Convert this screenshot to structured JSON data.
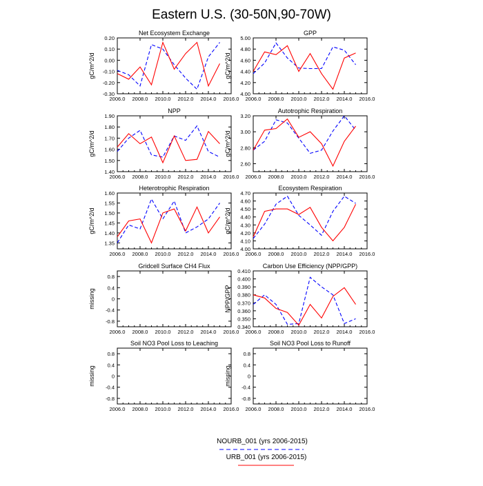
{
  "title": "Eastern U.S. (30-50N,90-70W)",
  "colors": {
    "nourb": "#0000ff",
    "urb": "#ff0000"
  },
  "legend": {
    "nourb_label": "NOURB_001 (yrs 2006-2015)",
    "urb_label": "URB_001 (yrs 2006-2015)"
  },
  "chart_data": [
    {
      "type": "line",
      "title": "Net Ecosystem Exchange",
      "ylabel": "gC/m^2/d",
      "xlim": [
        2006,
        2016
      ],
      "ylim": [
        -0.3,
        0.2
      ],
      "xticks": [
        "2006.0",
        "2008.0",
        "2010.0",
        "2012.0",
        "2014.0",
        "2016.0"
      ],
      "yticks": [
        "-0.30",
        "-0.20",
        "-0.10",
        "0.00",
        "0.10",
        "0.20"
      ],
      "x": [
        2006,
        2007,
        2008,
        2009,
        2010,
        2011,
        2012,
        2013,
        2014,
        2015
      ],
      "series": [
        {
          "name": "NOURB_001 (yrs 2006-2015)",
          "style": "dashed",
          "values": [
            -0.09,
            -0.13,
            -0.23,
            0.14,
            0.1,
            -0.04,
            -0.16,
            -0.26,
            0.03,
            0.16
          ]
        },
        {
          "name": "URB_001 (yrs 2006-2015)",
          "style": "solid",
          "values": [
            -0.12,
            -0.17,
            -0.06,
            -0.22,
            0.16,
            -0.08,
            0.06,
            0.16,
            -0.23,
            -0.03
          ]
        }
      ]
    },
    {
      "type": "line",
      "title": "GPP",
      "ylabel": "gC/m^2/d",
      "xlim": [
        2006,
        2016
      ],
      "ylim": [
        4.0,
        5.0
      ],
      "xticks": [
        "2006.0",
        "2008.0",
        "2010.0",
        "2012.0",
        "2014.0",
        "2016.0"
      ],
      "yticks": [
        "4.00",
        "4.20",
        "4.40",
        "4.60",
        "4.80",
        "5.00"
      ],
      "x": [
        2006,
        2007,
        2008,
        2009,
        2010,
        2011,
        2012,
        2013,
        2014,
        2015
      ],
      "series": [
        {
          "name": "NOURB_001 (yrs 2006-2015)",
          "style": "dashed",
          "values": [
            4.36,
            4.55,
            4.91,
            4.64,
            4.46,
            4.45,
            4.45,
            4.84,
            4.78,
            4.52
          ]
        },
        {
          "name": "URB_001 (yrs 2006-2015)",
          "style": "solid",
          "values": [
            4.4,
            4.75,
            4.7,
            4.86,
            4.4,
            4.72,
            4.36,
            4.08,
            4.64,
            4.73
          ]
        }
      ]
    },
    {
      "type": "line",
      "title": "NPP",
      "ylabel": "gC/m^2/d",
      "xlim": [
        2006,
        2016
      ],
      "ylim": [
        1.4,
        1.9
      ],
      "xticks": [
        "2006.0",
        "2008.0",
        "2010.0",
        "2012.0",
        "2014.0",
        "2016.0"
      ],
      "yticks": [
        "1.40",
        "1.50",
        "1.60",
        "1.70",
        "1.80",
        "1.90"
      ],
      "x": [
        2006,
        2007,
        2008,
        2009,
        2010,
        2011,
        2012,
        2013,
        2014,
        2015
      ],
      "series": [
        {
          "name": "NOURB_001 (yrs 2006-2015)",
          "style": "dashed",
          "values": [
            1.58,
            1.7,
            1.77,
            1.55,
            1.53,
            1.72,
            1.68,
            1.81,
            1.58,
            1.53
          ]
        },
        {
          "name": "URB_001 (yrs 2006-2015)",
          "style": "solid",
          "values": [
            1.62,
            1.74,
            1.65,
            1.71,
            1.48,
            1.72,
            1.5,
            1.51,
            1.76,
            1.65
          ]
        }
      ]
    },
    {
      "type": "line",
      "title": "Autotrophic Respiration",
      "ylabel": "gC/m^2/d",
      "xlim": [
        2006,
        2016
      ],
      "ylim": [
        2.5,
        3.2
      ],
      "xticks": [
        "2006.0",
        "2008.0",
        "2010.0",
        "2012.0",
        "2014.0",
        "2016.0"
      ],
      "yticks": [
        "2.60",
        "2.80",
        "3.00",
        "3.20"
      ],
      "ytick_values": [
        2.6,
        2.8,
        3.0,
        3.2
      ],
      "x": [
        2006,
        2007,
        2008,
        2009,
        2010,
        2011,
        2012,
        2013,
        2014,
        2015
      ],
      "series": [
        {
          "name": "NOURB_001 (yrs 2006-2015)",
          "style": "dashed",
          "values": [
            2.77,
            2.88,
            3.15,
            3.11,
            2.92,
            2.73,
            2.77,
            3.01,
            3.2,
            3.02
          ]
        },
        {
          "name": "URB_001 (yrs 2006-2015)",
          "style": "solid",
          "values": [
            2.77,
            3.02,
            3.04,
            3.16,
            2.93,
            3.0,
            2.85,
            2.57,
            2.88,
            3.07
          ]
        }
      ]
    },
    {
      "type": "line",
      "title": "Heterotrophic Respiration",
      "ylabel": "gC/m^2/d",
      "xlim": [
        2006,
        2016
      ],
      "ylim": [
        1.32,
        1.6
      ],
      "xticks": [
        "2006.0",
        "2008.0",
        "2010.0",
        "2012.0",
        "2014.0",
        "2016.0"
      ],
      "yticks": [
        "1.35",
        "1.40",
        "1.45",
        "1.50",
        "1.55",
        "1.60"
      ],
      "ytick_values": [
        1.35,
        1.4,
        1.45,
        1.5,
        1.55,
        1.6
      ],
      "x": [
        2006,
        2007,
        2008,
        2009,
        2010,
        2011,
        2012,
        2013,
        2014,
        2015
      ],
      "series": [
        {
          "name": "NOURB_001 (yrs 2006-2015)",
          "style": "dashed",
          "values": [
            1.35,
            1.44,
            1.42,
            1.57,
            1.47,
            1.56,
            1.4,
            1.43,
            1.47,
            1.55
          ]
        },
        {
          "name": "URB_001 (yrs 2006-2015)",
          "style": "solid",
          "values": [
            1.38,
            1.46,
            1.47,
            1.35,
            1.5,
            1.52,
            1.41,
            1.53,
            1.4,
            1.48
          ]
        }
      ]
    },
    {
      "type": "line",
      "title": "Ecosystem Respiration",
      "ylabel": "gC/m^2/d",
      "xlim": [
        2006,
        2016
      ],
      "ylim": [
        4.0,
        4.7
      ],
      "xticks": [
        "2006.0",
        "2008.0",
        "2010.0",
        "2012.0",
        "2014.0",
        "2016.0"
      ],
      "yticks": [
        "4.00",
        "4.10",
        "4.20",
        "4.30",
        "4.40",
        "4.50",
        "4.60",
        "4.70"
      ],
      "x": [
        2006,
        2007,
        2008,
        2009,
        2010,
        2011,
        2012,
        2013,
        2014,
        2015
      ],
      "series": [
        {
          "name": "NOURB_001 (yrs 2006-2015)",
          "style": "dashed",
          "values": [
            4.13,
            4.31,
            4.56,
            4.66,
            4.42,
            4.3,
            4.17,
            4.47,
            4.66,
            4.57
          ]
        },
        {
          "name": "URB_001 (yrs 2006-2015)",
          "style": "solid",
          "values": [
            4.15,
            4.47,
            4.5,
            4.5,
            4.43,
            4.52,
            4.27,
            4.1,
            4.27,
            4.56
          ]
        }
      ]
    },
    {
      "type": "line",
      "title": "Gridcell Surface CH4 Flux",
      "ylabel": "missing",
      "xlim": [
        2006,
        2016
      ],
      "ylim": [
        -1.0,
        1.0
      ],
      "xticks": [
        "2006.0",
        "2008.0",
        "2010.0",
        "2012.0",
        "2014.0",
        "2016.0"
      ],
      "yticks": [
        "-0.8",
        "-0.4",
        "0",
        "0.4",
        "0.8"
      ],
      "ytick_values": [
        -0.8,
        -0.4,
        0,
        0.4,
        0.8
      ],
      "x": [],
      "series": []
    },
    {
      "type": "line",
      "title": "Carbon Use Efficiency (NPP/GPP)",
      "ylabel": "NPP/GPP",
      "xlim": [
        2006,
        2016
      ],
      "ylim": [
        0.34,
        0.41
      ],
      "xticks": [
        "2006.0",
        "2008.0",
        "2010.0",
        "2012.0",
        "2014.0",
        "2016.0"
      ],
      "yticks": [
        "0.340",
        "0.350",
        "0.360",
        "0.370",
        "0.380",
        "0.390",
        "0.400",
        "0.410"
      ],
      "x": [
        2006,
        2007,
        2008,
        2009,
        2010,
        2011,
        2012,
        2013,
        2014,
        2015
      ],
      "series": [
        {
          "name": "NOURB_001 (yrs 2006-2015)",
          "style": "dashed",
          "values": [
            0.368,
            0.38,
            0.368,
            0.343,
            0.344,
            0.402,
            0.39,
            0.38,
            0.344,
            0.35
          ]
        },
        {
          "name": "URB_001 (yrs 2006-2015)",
          "style": "solid",
          "values": [
            0.38,
            0.376,
            0.363,
            0.358,
            0.342,
            0.368,
            0.351,
            0.378,
            0.389,
            0.368
          ]
        }
      ]
    },
    {
      "type": "line",
      "title": "Soil NO3 Pool Loss to Leaching",
      "ylabel": "missing",
      "xlim": [
        2006,
        2016
      ],
      "ylim": [
        -1.0,
        1.0
      ],
      "xticks": [
        "2006.0",
        "2008.0",
        "2010.0",
        "2012.0",
        "2014.0",
        "2016.0"
      ],
      "yticks": [
        "-0.8",
        "-0.4",
        "0",
        "0.4",
        "0.8"
      ],
      "ytick_values": [
        -0.8,
        -0.4,
        0,
        0.4,
        0.8
      ],
      "x": [],
      "series": []
    },
    {
      "type": "line",
      "title": "Soil NO3 Pool Loss to Runoff",
      "ylabel": "missing",
      "xlim": [
        2006,
        2016
      ],
      "ylim": [
        -1.0,
        1.0
      ],
      "xticks": [
        "2006.0",
        "2008.0",
        "2010.0",
        "2012.0",
        "2014.0",
        "2016.0"
      ],
      "yticks": [
        "-0.8",
        "-0.4",
        "0",
        "0.4",
        "0.8"
      ],
      "ytick_values": [
        -0.8,
        -0.4,
        0,
        0.4,
        0.8
      ],
      "x": [],
      "series": []
    }
  ]
}
